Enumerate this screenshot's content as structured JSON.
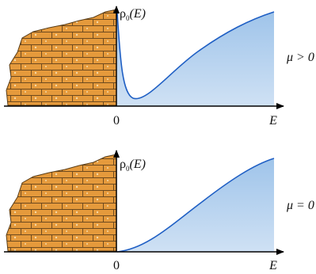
{
  "panels": [
    {
      "axis_label": {
        "symbol": "ρ",
        "subscript": "0",
        "argument": "(E)"
      },
      "origin": "0",
      "x_label": "E",
      "condition": "μ > 0"
    },
    {
      "axis_label": {
        "symbol": "ρ",
        "subscript": "0",
        "argument": "(E)"
      },
      "origin": "0",
      "x_label": "E",
      "condition": "μ = 0"
    }
  ]
}
